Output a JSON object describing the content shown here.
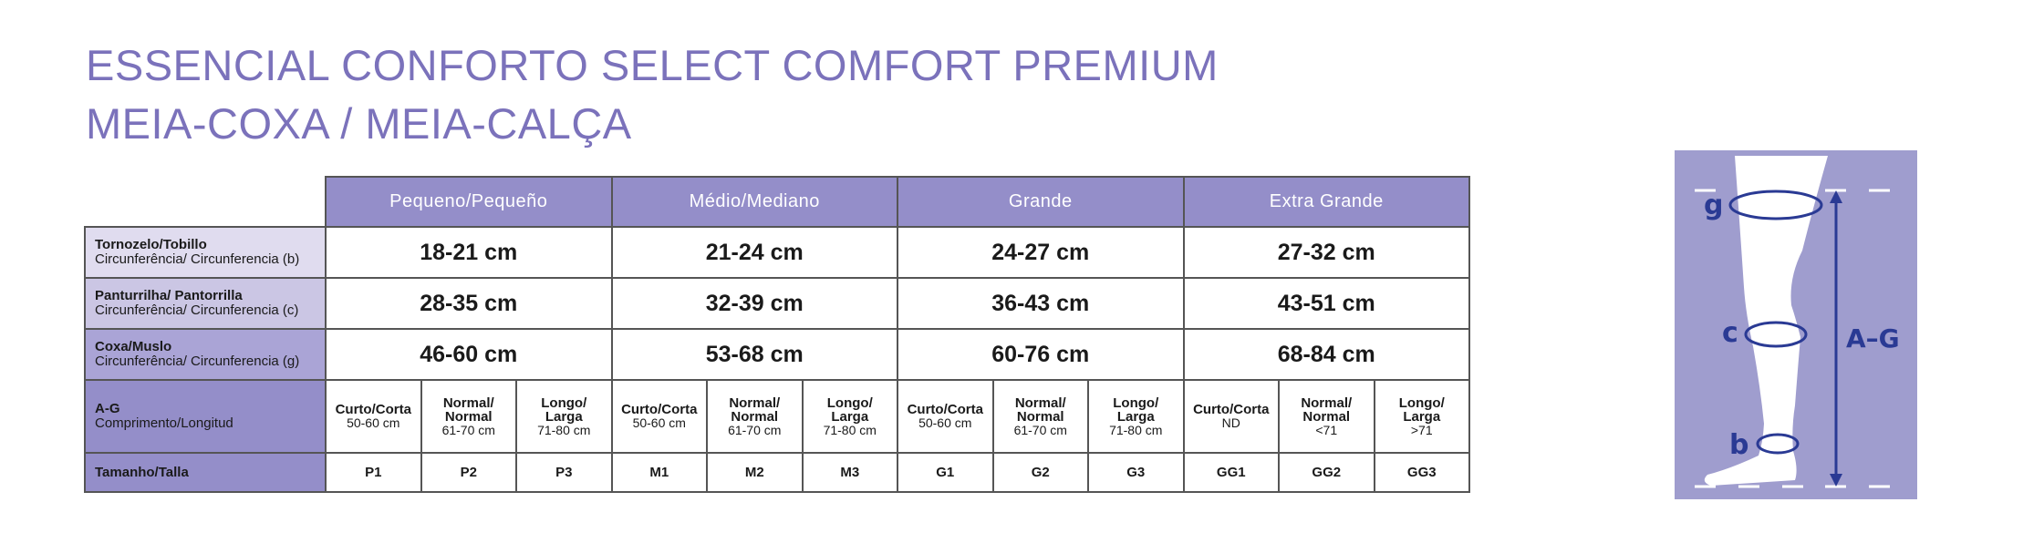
{
  "title": {
    "line1": "ESSENCIAL CONFORTO SELECT COMFORT PREMIUM",
    "line2": "MEIA-COXA / MEIA-CALÇA"
  },
  "sizes": [
    "Pequeno/Pequeño",
    "Médio/Mediano",
    "Grande",
    "Extra Grande"
  ],
  "rows": [
    {
      "label": "Tornozelo/Tobillo",
      "sub": "Circunferência/ Circunferencia (b)",
      "values": [
        "18-21 cm",
        "21-24 cm",
        "24-27 cm",
        "27-32 cm"
      ]
    },
    {
      "label": "Panturrilha/ Pantorrilla",
      "sub": "Circunferência/ Circunferencia (c)",
      "values": [
        "28-35 cm",
        "32-39 cm",
        "36-43 cm",
        "43-51 cm"
      ]
    },
    {
      "label": "Coxa/Muslo",
      "sub": "Circunferência/ Circunferencia (g)",
      "values": [
        "46-60 cm",
        "53-68 cm",
        "60-76 cm",
        "68-84 cm"
      ]
    }
  ],
  "length_row": {
    "label": "A-G",
    "sub": "Comprimento/Longitud",
    "cells": [
      {
        "name": "Curto/Corta",
        "value": "50-60 cm"
      },
      {
        "name": "Normal/ Normal",
        "value": "61-70 cm"
      },
      {
        "name": "Longo/ Larga",
        "value": "71-80 cm"
      },
      {
        "name": "Curto/Corta",
        "value": "50-60 cm"
      },
      {
        "name": "Normal/ Normal",
        "value": "61-70 cm"
      },
      {
        "name": "Longo/ Larga",
        "value": "71-80 cm"
      },
      {
        "name": "Curto/Corta",
        "value": "50-60 cm"
      },
      {
        "name": "Normal/ Normal",
        "value": "61-70 cm"
      },
      {
        "name": "Longo/ Larga",
        "value": "71-80 cm"
      },
      {
        "name": "Curto/Corta",
        "value": "ND"
      },
      {
        "name": "Normal/ Normal",
        "value": "<71"
      },
      {
        "name": "Longo/ Larga",
        "value": ">71"
      }
    ]
  },
  "size_row": {
    "label": "Tamanho/Talla",
    "codes": [
      "P1",
      "P2",
      "P3",
      "M1",
      "M2",
      "M3",
      "G1",
      "G2",
      "G3",
      "GG1",
      "GG2",
      "GG3"
    ]
  },
  "figure": {
    "g": "g",
    "c": "c",
    "b": "b",
    "length": "A–G"
  },
  "colors": {
    "accent": "#7b72bb",
    "header": "#948ec9",
    "diagram_ink": "#2a3a94"
  }
}
